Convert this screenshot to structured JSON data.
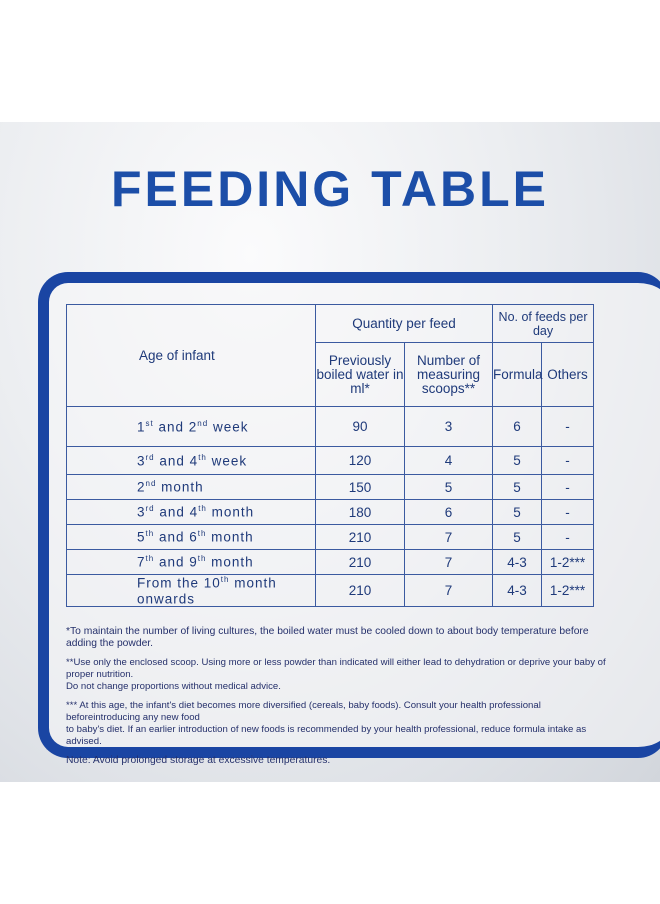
{
  "title": "FEEDING TABLE",
  "colors": {
    "brand_blue": "#1a45a3",
    "text_blue": "#1f3a7a"
  },
  "table": {
    "age_header": "Age of infant",
    "quantity_header": "Quantity per feed",
    "feeds_header": "No. of feeds per day",
    "water_header": "Previously boiled water in ml*",
    "scoops_header": "Number of measuring scoops**",
    "formula_header": "Formula",
    "others_header": "Others",
    "rows": [
      {
        "age_pre": "1",
        "age_sup1": "st",
        "age_mid": " and 2",
        "age_sup2": "nd",
        "age_post": " week",
        "water": "90",
        "scoops": "3",
        "formula": "6",
        "others": "-"
      },
      {
        "age_pre": "3",
        "age_sup1": "rd",
        "age_mid": " and 4",
        "age_sup2": "th",
        "age_post": " week",
        "water": "120",
        "scoops": "4",
        "formula": "5",
        "others": "-"
      },
      {
        "age_pre": "2",
        "age_sup1": "nd",
        "age_mid": " month",
        "age_sup2": "",
        "age_post": "",
        "water": "150",
        "scoops": "5",
        "formula": "5",
        "others": "-"
      },
      {
        "age_pre": "3",
        "age_sup1": "rd",
        "age_mid": " and 4",
        "age_sup2": "th",
        "age_post": " month",
        "water": "180",
        "scoops": "6",
        "formula": "5",
        "others": "-"
      },
      {
        "age_pre": "5",
        "age_sup1": "th",
        "age_mid": " and 6",
        "age_sup2": "th",
        "age_post": " month",
        "water": "210",
        "scoops": "7",
        "formula": "5",
        "others": "-"
      },
      {
        "age_pre": "7",
        "age_sup1": "th",
        "age_mid": " and 9",
        "age_sup2": "th",
        "age_post": " month",
        "water": "210",
        "scoops": "7",
        "formula": "4-3",
        "others": "1-2***"
      },
      {
        "age_pre": "From the 10",
        "age_sup1": "th",
        "age_mid": " month onwards",
        "age_sup2": "",
        "age_post": "",
        "water": "210",
        "scoops": "7",
        "formula": "4-3",
        "others": "1-2***"
      }
    ]
  },
  "notes": {
    "note1": "*To maintain the number of living cultures, the boiled water must be cooled down to about body temperature before adding the powder.",
    "note2a": "**Use only the enclosed scoop. Using more or less powder than indicated will either lead to dehydration or deprive your baby of proper nutrition.",
    "note2b": "Do not change proportions without medical advice.",
    "note3a": "*** At this age, the infant's diet becomes more diversified (cereals, baby foods). Consult your health professional beforeintroducing any new food",
    "note3b": "to baby's diet. If an earlier introduction of new foods is recommended by your health professional, reduce formula intake as advised.",
    "note4": "Note: Avoid prolonged storage at excessive temperatures."
  }
}
